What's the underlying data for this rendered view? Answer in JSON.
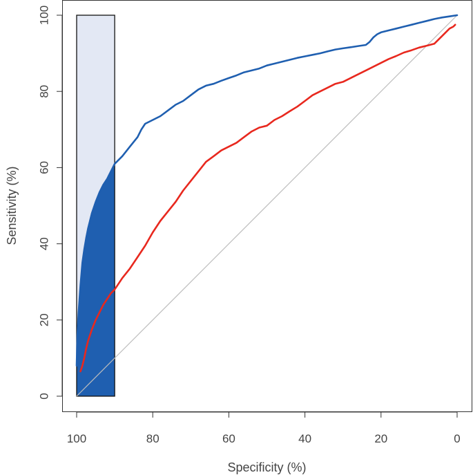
{
  "chart_data": {
    "type": "line",
    "title": "",
    "xlabel": "Specificity (%)",
    "ylabel": "Sensitivity (%)",
    "x_reversed": true,
    "xlim": [
      100,
      0
    ],
    "ylim": [
      0,
      100
    ],
    "x_ticks": [
      100,
      80,
      60,
      40,
      20,
      0
    ],
    "y_ticks": [
      0,
      20,
      40,
      60,
      80,
      100
    ],
    "grid": false,
    "legend": "none",
    "reference_line": {
      "from": [
        100,
        0
      ],
      "to": [
        0,
        100
      ],
      "color": "#bdbdbd"
    },
    "partial_auc_region": {
      "specificity_range": [
        100,
        90
      ],
      "box_fill": "#e3e8f4",
      "area_fill": "#1f5fb0",
      "border": "#111111"
    },
    "series": [
      {
        "color": "#1f5fb0",
        "x": [
          100,
          99.8,
          99.5,
          99,
          98.5,
          98,
          97.5,
          97,
          96.5,
          96,
          95,
          94,
          93,
          92,
          91,
          90,
          88,
          86,
          84,
          83,
          82,
          80,
          78,
          76,
          74,
          72,
          70,
          68,
          66,
          64,
          62,
          60,
          58,
          56,
          54,
          52,
          50,
          48,
          46,
          44,
          42,
          40,
          38,
          36,
          34,
          32,
          30,
          28,
          26,
          24,
          23,
          22,
          21,
          20,
          18,
          16,
          14,
          12,
          10,
          8,
          6,
          4,
          2,
          0
        ],
        "y": [
          8,
          16,
          22,
          29,
          35,
          38.5,
          41.5,
          44,
          46,
          48,
          51,
          53.5,
          55.5,
          57,
          59,
          61,
          63,
          65.5,
          68,
          70,
          71.5,
          72.5,
          73.5,
          75,
          76.5,
          77.5,
          79,
          80.5,
          81.5,
          82,
          82.8,
          83.5,
          84.2,
          85,
          85.5,
          86,
          86.8,
          87.3,
          87.8,
          88.3,
          88.8,
          89.2,
          89.6,
          90,
          90.5,
          91,
          91.3,
          91.6,
          91.9,
          92.2,
          93,
          94.2,
          95,
          95.5,
          96,
          96.5,
          97,
          97.5,
          98,
          98.5,
          99,
          99.4,
          99.7,
          100
        ]
      },
      {
        "color": "#e8281e",
        "x": [
          99,
          98.5,
          98,
          97.5,
          97,
          96.5,
          96,
          95,
          94,
          93,
          92,
          91,
          90,
          88,
          86,
          84,
          82,
          80,
          78,
          76,
          74,
          72,
          70,
          68,
          66,
          64,
          62,
          60,
          58,
          56,
          54,
          52,
          50,
          48,
          46,
          44,
          42,
          40,
          38,
          36,
          34,
          32,
          30,
          28,
          26,
          24,
          22,
          20,
          18,
          16,
          14,
          12,
          10,
          8,
          6,
          4,
          2,
          1,
          0.5
        ],
        "y": [
          6.5,
          8,
          10,
          12.5,
          14.5,
          16,
          17.5,
          20,
          22,
          24,
          25.5,
          27,
          28,
          31,
          33.5,
          36.5,
          39.5,
          43,
          46,
          48.5,
          51,
          54,
          56.5,
          59,
          61.5,
          63,
          64.5,
          65.5,
          66.5,
          68,
          69.5,
          70.5,
          71,
          72.5,
          73.5,
          74.8,
          76,
          77.5,
          79,
          80,
          81,
          82,
          82.5,
          83.5,
          84.5,
          85.5,
          86.5,
          87.5,
          88.5,
          89.3,
          90.2,
          90.8,
          91.5,
          92,
          92.5,
          94.5,
          96.5,
          97,
          97.5
        ]
      }
    ]
  }
}
